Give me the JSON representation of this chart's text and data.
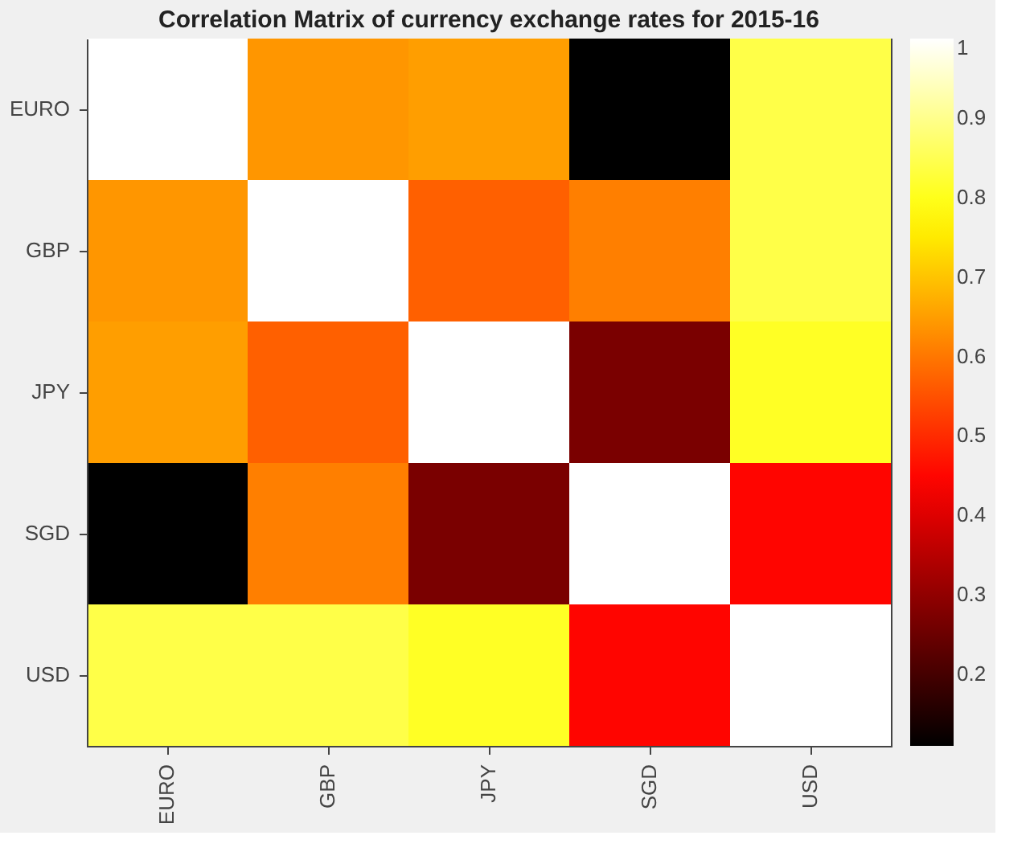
{
  "chart_data": {
    "type": "heatmap",
    "title": "Correlation Matrix of currency exchange rates for 2015-16",
    "categories": [
      "EURO",
      "GBP",
      "JPY",
      "SGD",
      "USD"
    ],
    "y_categories": [
      "EURO",
      "GBP",
      "JPY",
      "SGD",
      "USD"
    ],
    "cells": [
      [
        1,
        0.64,
        0.65,
        0.11,
        0.84
      ],
      [
        0.64,
        1,
        0.57,
        0.61,
        0.84
      ],
      [
        0.65,
        0.57,
        1,
        0.27,
        0.81
      ],
      [
        0.11,
        0.61,
        0.27,
        1,
        0.45
      ],
      [
        0.84,
        0.84,
        0.81,
        0.45,
        1
      ]
    ],
    "clim": [
      0.11,
      1
    ],
    "cticks": [
      0.2,
      0.3,
      0.4,
      0.5,
      0.6,
      0.7,
      0.8,
      0.9,
      1
    ],
    "grid": false
  }
}
